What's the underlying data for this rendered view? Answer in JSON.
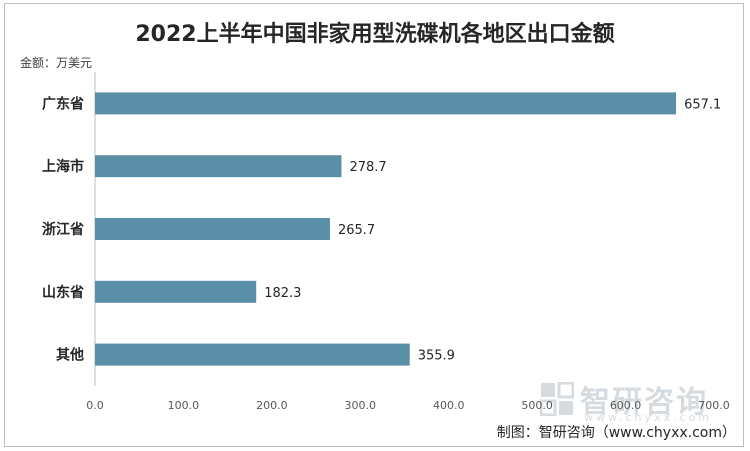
{
  "title": "2022上半年中国非家用型洗碟机各地区出口金额",
  "unit_label": "金额：万美元",
  "source": "制图：智研咨询（www.chyxx.com）",
  "watermark": {
    "name": "智研咨询",
    "url": "www.chyxx.com",
    "logo": "chyxx-logo-icon"
  },
  "colors": {
    "bar": "#5b8fa8",
    "axis": "#bfbfbf"
  },
  "chart_data": {
    "type": "bar",
    "orientation": "horizontal",
    "categories": [
      "广东省",
      "上海市",
      "浙江省",
      "山东省",
      "其他"
    ],
    "values": [
      657.1,
      278.7,
      265.7,
      182.3,
      355.9
    ],
    "value_labels": [
      "657.1",
      "278.7",
      "265.7",
      "182.3",
      "355.9"
    ],
    "xlim": [
      0,
      700
    ],
    "xticks": [
      "0.0",
      "100.0",
      "200.0",
      "300.0",
      "400.0",
      "500.0",
      "600.0",
      "700.0"
    ],
    "xtick_values": [
      0,
      100,
      200,
      300,
      400,
      500,
      600,
      700
    ],
    "grid": false
  }
}
